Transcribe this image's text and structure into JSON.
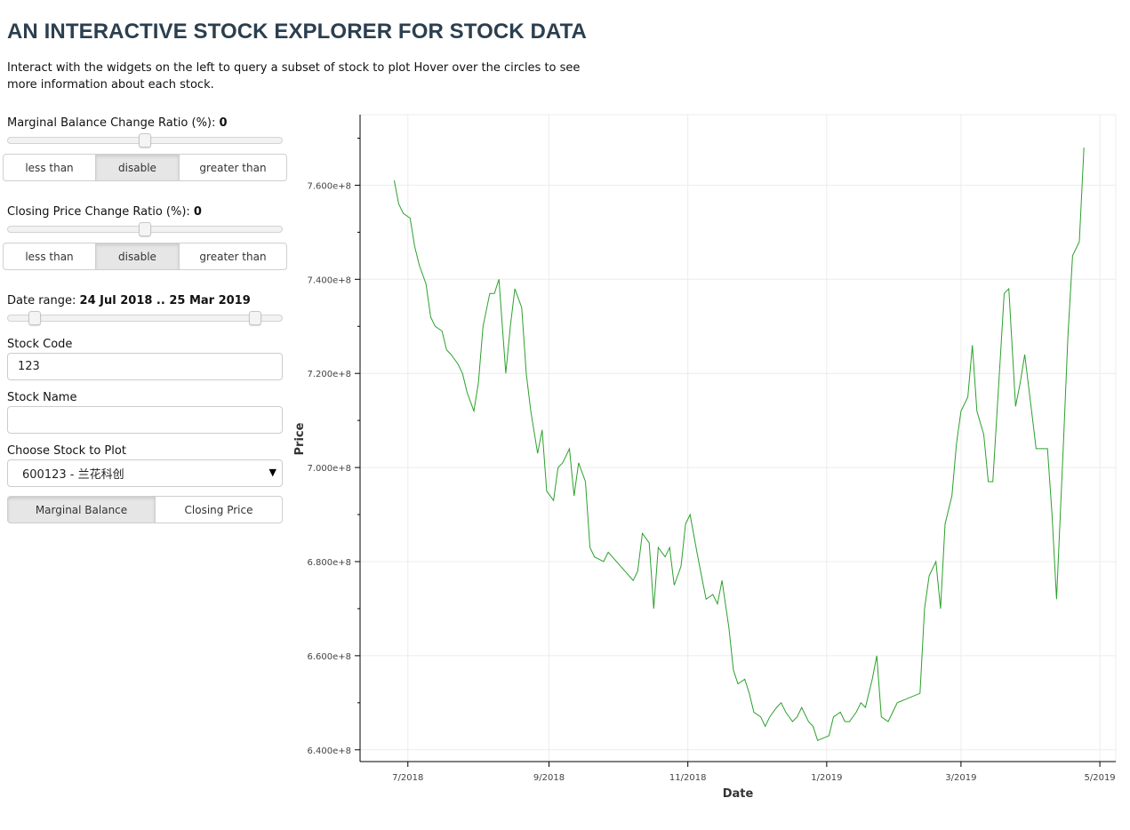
{
  "page": {
    "title": "AN INTERACTIVE STOCK EXPLORER FOR STOCK DATA",
    "description": "Interact with the widgets on the left to query a subset of stock to plot Hover over the circles to see more information about each stock."
  },
  "controls": {
    "marginal_ratio": {
      "label": "Marginal Balance Change Ratio (%): ",
      "value": "0",
      "fraction": 0.5
    },
    "marginal_filter": {
      "options": [
        "less than",
        "disable",
        "greater than"
      ],
      "active": "disable"
    },
    "closing_ratio": {
      "label": "Closing Price Change Ratio (%): ",
      "value": "0",
      "fraction": 0.5
    },
    "closing_filter": {
      "options": [
        "less than",
        "disable",
        "greater than"
      ],
      "active": "disable"
    },
    "date_range": {
      "label": "Date range: ",
      "value": "24 Jul 2018 .. 25 Mar 2019",
      "start_fraction": 0.097,
      "end_fraction": 0.903
    },
    "stock_code": {
      "label": "Stock Code",
      "value": "123"
    },
    "stock_name": {
      "label": "Stock Name",
      "value": ""
    },
    "choose_stock": {
      "label": "Choose Stock to Plot",
      "value": "600123 - 兰花科创"
    },
    "plot_type": {
      "options": [
        "Marginal Balance",
        "Closing Price"
      ],
      "active": "Marginal Balance"
    }
  },
  "chart_data": {
    "type": "line",
    "xlabel": "Date",
    "ylabel": "Price",
    "x_ticks": [
      "7/2018",
      "9/2018",
      "11/2018",
      "1/2019",
      "3/2019",
      "5/2019"
    ],
    "x_tick_dates": [
      "2018-07-01",
      "2018-09-01",
      "2018-11-01",
      "2019-01-01",
      "2019-03-01",
      "2019-05-01"
    ],
    "xlim": [
      "2018-06-10",
      "2019-05-08"
    ],
    "y_ticks": [
      "6.400e+8",
      "6.600e+8",
      "6.800e+8",
      "7.000e+8",
      "7.200e+8",
      "7.400e+8",
      "7.600e+8"
    ],
    "y_tick_values": [
      640000000,
      660000000,
      680000000,
      700000000,
      720000000,
      740000000,
      760000000
    ],
    "ylim": [
      637500000,
      775000000
    ],
    "grid": true,
    "series": [
      {
        "color": "#2ca02c",
        "x": [
          "2018-06-25",
          "2018-06-27",
          "2018-06-29",
          "2018-07-02",
          "2018-07-04",
          "2018-07-06",
          "2018-07-09",
          "2018-07-11",
          "2018-07-13",
          "2018-07-16",
          "2018-07-18",
          "2018-07-20",
          "2018-07-23",
          "2018-07-25",
          "2018-07-27",
          "2018-07-30",
          "2018-08-01",
          "2018-08-03",
          "2018-08-06",
          "2018-08-08",
          "2018-08-10",
          "2018-08-13",
          "2018-08-15",
          "2018-08-17",
          "2018-08-20",
          "2018-08-22",
          "2018-08-24",
          "2018-08-27",
          "2018-08-29",
          "2018-08-31",
          "2018-09-03",
          "2018-09-05",
          "2018-09-07",
          "2018-09-10",
          "2018-09-12",
          "2018-09-14",
          "2018-09-17",
          "2018-09-19",
          "2018-09-21",
          "2018-09-25",
          "2018-09-27",
          "2018-10-08",
          "2018-10-10",
          "2018-10-12",
          "2018-10-15",
          "2018-10-17",
          "2018-10-19",
          "2018-10-22",
          "2018-10-24",
          "2018-10-26",
          "2018-10-29",
          "2018-10-31",
          "2018-11-02",
          "2018-11-05",
          "2018-11-07",
          "2018-11-09",
          "2018-11-12",
          "2018-11-14",
          "2018-11-16",
          "2018-11-19",
          "2018-11-21",
          "2018-11-23",
          "2018-11-26",
          "2018-11-28",
          "2018-11-30",
          "2018-12-03",
          "2018-12-05",
          "2018-12-07",
          "2018-12-10",
          "2018-12-12",
          "2018-12-14",
          "2018-12-17",
          "2018-12-19",
          "2018-12-21",
          "2018-12-24",
          "2018-12-26",
          "2018-12-28",
          "2019-01-02",
          "2019-01-04",
          "2019-01-07",
          "2019-01-09",
          "2019-01-11",
          "2019-01-14",
          "2019-01-16",
          "2019-01-18",
          "2019-01-21",
          "2019-01-23",
          "2019-01-25",
          "2019-01-28",
          "2019-01-30",
          "2019-02-01",
          "2019-02-11",
          "2019-02-13",
          "2019-02-15",
          "2019-02-18",
          "2019-02-20",
          "2019-02-22",
          "2019-02-25",
          "2019-02-27",
          "2019-03-01",
          "2019-03-04",
          "2019-03-06",
          "2019-03-08",
          "2019-03-11",
          "2019-03-13",
          "2019-03-15",
          "2019-03-18",
          "2019-03-20",
          "2019-03-22",
          "2019-03-25",
          "2019-03-27",
          "2019-03-29",
          "2019-04-01",
          "2019-04-03",
          "2019-04-08",
          "2019-04-10",
          "2019-04-12",
          "2019-04-15",
          "2019-04-17",
          "2019-04-19",
          "2019-04-22",
          "2019-04-24"
        ],
        "y": [
          761000000,
          756000000,
          754000000,
          753000000,
          747000000,
          743000000,
          739000000,
          732000000,
          730000000,
          729000000,
          725000000,
          724000000,
          722000000,
          720000000,
          716000000,
          712000000,
          718000000,
          730000000,
          737000000,
          737000000,
          740000000,
          720000000,
          730000000,
          738000000,
          734000000,
          720000000,
          712000000,
          703000000,
          708000000,
          695000000,
          693000000,
          700000000,
          701000000,
          704000000,
          694000000,
          701000000,
          697000000,
          683000000,
          681000000,
          680000000,
          682000000,
          676000000,
          678000000,
          686000000,
          684000000,
          670000000,
          683000000,
          681000000,
          683000000,
          675000000,
          679000000,
          688000000,
          690000000,
          682000000,
          677000000,
          672000000,
          673000000,
          671000000,
          676000000,
          666000000,
          657000000,
          654000000,
          655000000,
          652000000,
          648000000,
          647000000,
          645000000,
          647000000,
          649000000,
          650000000,
          648000000,
          646000000,
          647000000,
          649000000,
          646000000,
          645000000,
          642000000,
          643000000,
          647000000,
          648000000,
          646000000,
          646000000,
          648000000,
          650000000,
          649000000,
          655000000,
          660000000,
          647000000,
          646000000,
          648000000,
          650000000,
          652000000,
          670000000,
          677000000,
          680000000,
          670000000,
          688000000,
          694000000,
          705000000,
          712000000,
          715000000,
          726000000,
          712000000,
          707000000,
          697000000,
          697000000,
          721000000,
          737000000,
          738000000,
          713000000,
          718000000,
          724000000,
          712000000,
          704000000,
          704000000,
          690000000,
          672000000,
          705000000,
          728000000,
          745000000,
          748000000,
          768000000
        ]
      }
    ]
  }
}
